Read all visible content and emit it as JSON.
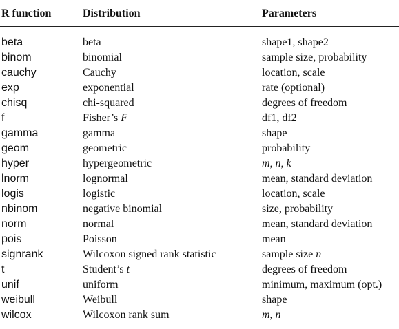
{
  "table": {
    "header": [
      "R function",
      "Distribution",
      "Parameters"
    ],
    "rows": [
      [
        "beta",
        "beta",
        "shape1, shape2"
      ],
      [
        "binom",
        "binomial",
        "sample size, probability"
      ],
      [
        "cauchy",
        "Cauchy",
        "location, scale"
      ],
      [
        "exp",
        "exponential",
        "rate (optional)"
      ],
      [
        "chisq",
        "chi-squared",
        "degrees of freedom"
      ],
      [
        "f",
        [
          {
            "text": "Fisher’s "
          },
          {
            "text": "F",
            "italic": true
          }
        ],
        "df1, df2"
      ],
      [
        "gamma",
        "gamma",
        "shape"
      ],
      [
        "geom",
        "geometric",
        "probability"
      ],
      [
        "hyper",
        "hypergeometric",
        [
          {
            "text": "m, n, k",
            "italic": true
          }
        ]
      ],
      [
        "lnorm",
        "lognormal",
        "mean, standard deviation"
      ],
      [
        "logis",
        "logistic",
        "location, scale"
      ],
      [
        "nbinom",
        "negative binomial",
        "size, probability"
      ],
      [
        "norm",
        "normal",
        "mean, standard deviation"
      ],
      [
        "pois",
        "Poisson",
        "mean"
      ],
      [
        "signrank",
        "Wilcoxon signed rank statistic",
        [
          {
            "text": "sample size "
          },
          {
            "text": "n",
            "italic": true
          }
        ]
      ],
      [
        "t",
        [
          {
            "text": "Student’s "
          },
          {
            "text": "t",
            "italic": true
          }
        ],
        "degrees of freedom"
      ],
      [
        "unif",
        "uniform",
        "minimum, maximum (opt.)"
      ],
      [
        "weibull",
        "Weibull",
        "shape"
      ],
      [
        "wilcox",
        "Wilcoxon rank sum",
        [
          {
            "text": "m, n",
            "italic": true
          }
        ]
      ]
    ]
  }
}
